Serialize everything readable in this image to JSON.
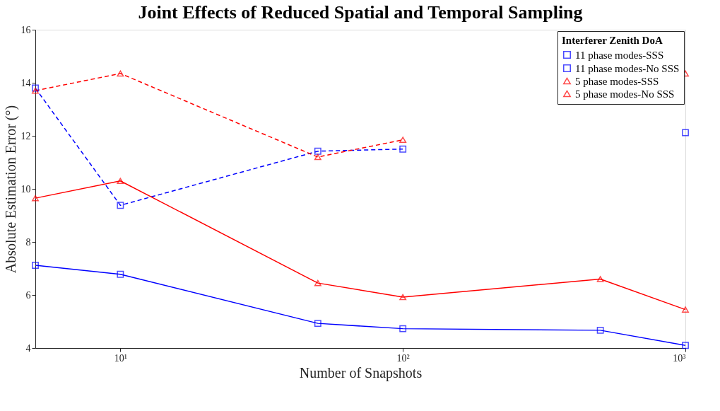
{
  "chart_data": {
    "type": "line",
    "title": "Joint Effects of Reduced Spatial and Temporal Sampling",
    "xlabel": "Number of Snapshots",
    "ylabel": "Absolute Estimation Error (°)",
    "legend_title": "Interferer Zenith DoA",
    "x": [
      5,
      10,
      50,
      100,
      500,
      1000
    ],
    "series": [
      {
        "name": "11 phase modes-SSS",
        "color": "#0000ff",
        "marker": "square",
        "line_style": "solid",
        "values": [
          7.12,
          6.78,
          4.93,
          4.73,
          4.67,
          4.1
        ]
      },
      {
        "name": "11 phase modes-No SSS",
        "color": "#0000ff",
        "marker": "square",
        "line_style": "dashed",
        "values": [
          13.8,
          9.38,
          11.42,
          11.5,
          null,
          12.12
        ]
      },
      {
        "name": "5 phase modes-SSS",
        "color": "#ff0000",
        "marker": "triangle",
        "line_style": "solid",
        "values": [
          9.65,
          10.3,
          6.45,
          5.92,
          6.6,
          5.45
        ]
      },
      {
        "name": "5 phase modes-No SSS",
        "color": "#ff0000",
        "marker": "triangle",
        "line_style": "dashed",
        "values": [
          13.7,
          14.35,
          11.2,
          11.85,
          null,
          14.35
        ]
      }
    ],
    "log": "x",
    "xlim": [
      5,
      1000
    ],
    "xticks": [
      {
        "value": 10,
        "label": "10¹"
      },
      {
        "value": 100,
        "label": "10²"
      },
      {
        "value": 1000,
        "label": "10³"
      }
    ],
    "ylim": [
      4,
      16
    ],
    "yticks": [
      4,
      6,
      8,
      10,
      12,
      14,
      16
    ],
    "grid": false,
    "legend": "top right"
  }
}
